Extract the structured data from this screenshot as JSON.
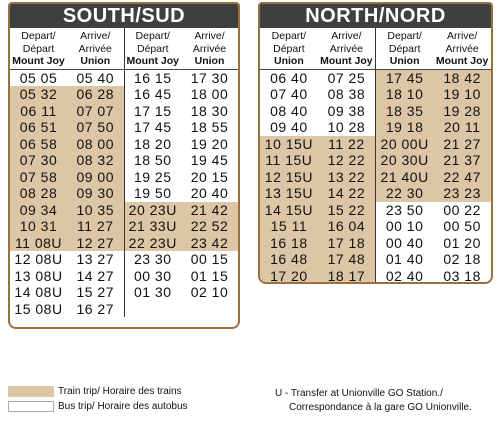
{
  "south": {
    "title": "SOUTH/SUD",
    "headers": [
      {
        "line1": "Depart/",
        "line2": "Départ",
        "station": "Mount Joy"
      },
      {
        "line1": "Arrive/",
        "line2": "Arrivée",
        "station": "Union"
      },
      {
        "line1": "Depart/",
        "line2": "Départ",
        "station": "Mount Joy"
      },
      {
        "line1": "Arrive/",
        "line2": "Arrivée",
        "station": "Union"
      }
    ],
    "rows": [
      [
        "05 05",
        "05 40",
        "16 15",
        "17 30"
      ],
      [
        "05 32",
        "06 28",
        "16 45",
        "18 00"
      ],
      [
        "06 11",
        "07 07",
        "17 15",
        "18 30"
      ],
      [
        "06 51",
        "07 50",
        "17 45",
        "18 55"
      ],
      [
        "06 58",
        "08 00",
        "18 20",
        "19 20"
      ],
      [
        "07 30",
        "08 32",
        "18 50",
        "19 45"
      ],
      [
        "07 58",
        "09 00",
        "19 25",
        "20 15"
      ],
      [
        "08 28",
        "09 30",
        "19 50",
        "20 40"
      ],
      [
        "09 34",
        "10 35",
        "20 23U",
        "21 42"
      ],
      [
        "10 31",
        "11 27",
        "21 33U",
        "22 52"
      ],
      [
        "11 08U",
        "12 27",
        "22 23U",
        "23 42"
      ],
      [
        "12 08U",
        "13 27",
        "23 30",
        "00 15"
      ],
      [
        "13 08U",
        "14 27",
        "00 30",
        "01 15"
      ],
      [
        "14 08U",
        "15 27",
        "01 30",
        "02 10"
      ],
      [
        "15 08U",
        "16 27",
        "",
        ""
      ]
    ]
  },
  "north": {
    "title": "NORTH/NORD",
    "headers": [
      {
        "line1": "Depart/",
        "line2": "Départ",
        "station": "Union"
      },
      {
        "line1": "Arrive/",
        "line2": "Arrivée",
        "station": "Mount Joy"
      },
      {
        "line1": "Depart/",
        "line2": "Départ",
        "station": "Union"
      },
      {
        "line1": "Arrive/",
        "line2": "Arrivée",
        "station": "Mount Joy"
      }
    ],
    "rows": [
      [
        "06 40",
        "07 25",
        "17 45",
        "18 42"
      ],
      [
        "07 40",
        "08 38",
        "18 10",
        "19 10"
      ],
      [
        "08 40",
        "09 38",
        "18 35",
        "19 28"
      ],
      [
        "09 40",
        "10 28",
        "19 18",
        "20 11"
      ],
      [
        "10 15U",
        "11 22",
        "20 00U",
        "21 27"
      ],
      [
        "11 15U",
        "12 22",
        "20 30U",
        "21 37"
      ],
      [
        "12 15U",
        "13 22",
        "21 40U",
        "22 47"
      ],
      [
        "13 15U",
        "14 22",
        "22 30",
        "23 23"
      ],
      [
        "14 15U",
        "15 22",
        "23 50",
        "00 22"
      ],
      [
        "15 11",
        "16 04",
        "00 10",
        "00 50"
      ],
      [
        "16 18",
        "17 18",
        "00 40",
        "01 20"
      ],
      [
        "16 48",
        "17 48",
        "01 40",
        "02 18"
      ],
      [
        "17 20",
        "18 17",
        "02 40",
        "03 18"
      ]
    ]
  },
  "legend": {
    "train": "Train trip/ Horaire des trains",
    "bus": "Bus trip/ Horaire des autobus"
  },
  "note": {
    "line1": "U - Transfer at Unionville GO Station./",
    "line2": "Correspondance à la gare GO Unionville."
  },
  "colors": {
    "train": "#dcc6a6",
    "border": "#9c6f3f",
    "title_bg": "#3f3f3f"
  }
}
